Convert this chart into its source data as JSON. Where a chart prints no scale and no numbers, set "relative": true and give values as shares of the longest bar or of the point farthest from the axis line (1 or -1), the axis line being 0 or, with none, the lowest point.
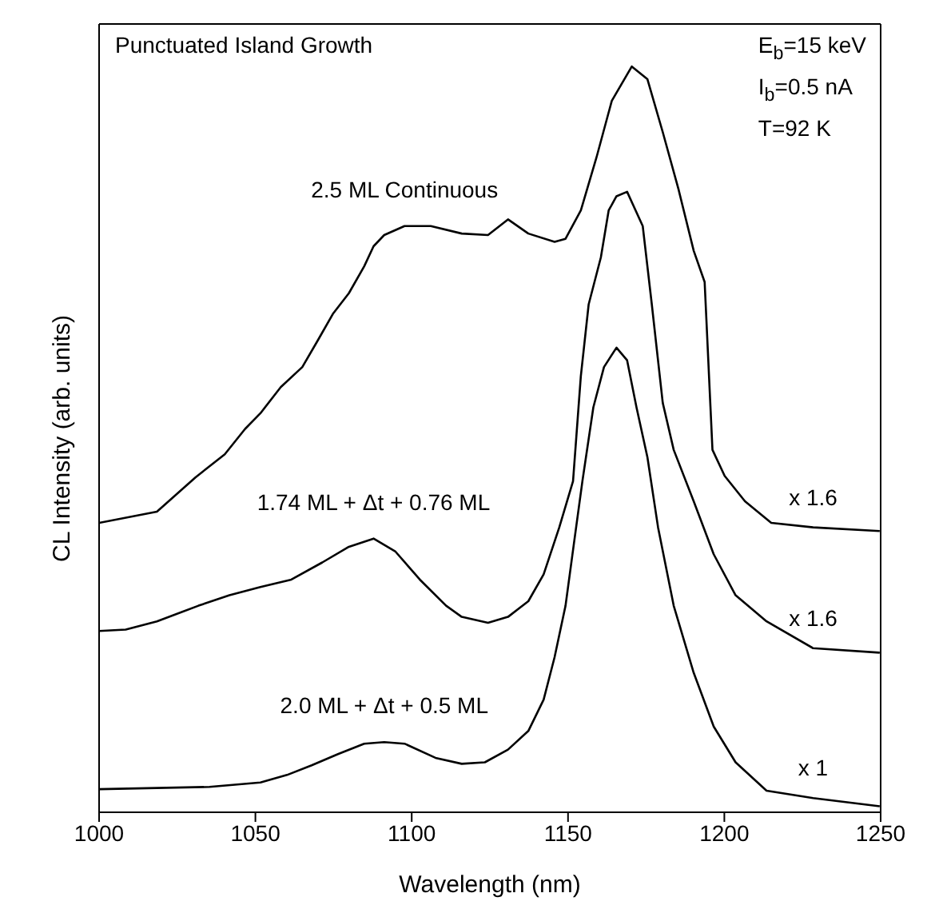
{
  "chart_data": {
    "type": "line",
    "title": "Punctuated Island Growth",
    "xlabel": "Wavelength (nm)",
    "ylabel": "CL Intensity (arb. units)",
    "relative": true,
    "marker": "none",
    "xlim": [
      1000,
      1250
    ],
    "xticks": [
      1000,
      1050,
      1100,
      1150,
      1200,
      1250
    ],
    "annotations": [
      "E$_{b}$=15 keV",
      "I$_{b}$=0.5 nA",
      "T=92 K",
      "x 1.6",
      "x 1.6",
      "x 1"
    ],
    "series": [
      {
        "name": "2.5 ML Continuous",
        "color": "#000000",
        "x": [
          1000,
          1018.5,
          1030.8,
          1040.2,
          1046.7,
          1051.6,
          1058.1,
          1065,
          1070,
          1074.9,
          1079.9,
          1084.8,
          1087.8,
          1091.2,
          1097.7,
          1106.1,
          1116,
          1124.4,
          1130.8,
          1137.3,
          1145.7,
          1149.2,
          1154.1,
          1159.1,
          1164,
          1170.4,
          1175.4,
          1180.3,
          1185.3,
          1190.2,
          1193.7,
          1196.2,
          1200.1,
          1206.6,
          1215,
          1228.4,
          1249.7
        ],
        "values": [
          0.388,
          0.403,
          0.449,
          0.48,
          0.514,
          0.535,
          0.57,
          0.597,
          0.633,
          0.669,
          0.696,
          0.732,
          0.759,
          0.774,
          0.786,
          0.786,
          0.776,
          0.774,
          0.795,
          0.776,
          0.765,
          0.769,
          0.807,
          0.878,
          0.954,
          1,
          0.983,
          0.912,
          0.836,
          0.753,
          0.711,
          0.486,
          0.451,
          0.417,
          0.388,
          0.382,
          0.377
        ]
      },
      {
        "name": "1.74 ML + Δt + 0.76 ML",
        "color": "#000000",
        "x": [
          1000,
          1008.5,
          1018.5,
          1031.8,
          1041.7,
          1051.6,
          1061.5,
          1071.4,
          1079.9,
          1087.8,
          1094.7,
          1102.6,
          1111,
          1116,
          1124.4,
          1130.8,
          1137.3,
          1142.2,
          1147.2,
          1151.6,
          1154.1,
          1156.6,
          1160.5,
          1163,
          1165.5,
          1168.9,
          1173.9,
          1176.8,
          1180.3,
          1183.8,
          1190.2,
          1196.6,
          1203.6,
          1213.5,
          1228.4,
          1249.7
        ],
        "values": [
          0.243,
          0.245,
          0.256,
          0.277,
          0.291,
          0.302,
          0.312,
          0.335,
          0.356,
          0.367,
          0.35,
          0.312,
          0.277,
          0.262,
          0.254,
          0.262,
          0.283,
          0.319,
          0.382,
          0.444,
          0.585,
          0.681,
          0.744,
          0.807,
          0.826,
          0.832,
          0.786,
          0.681,
          0.549,
          0.486,
          0.417,
          0.346,
          0.291,
          0.256,
          0.22,
          0.214
        ]
      },
      {
        "name": "2.0 ML + Δt + 0.5 ML",
        "color": "#000000",
        "x": [
          1000,
          1035.3,
          1051.6,
          1060.1,
          1068,
          1076.4,
          1084.8,
          1091.2,
          1097.7,
          1107.6,
          1116,
          1123.4,
          1130.8,
          1137.3,
          1142.2,
          1145.7,
          1149.2,
          1152.1,
          1154.6,
          1158.1,
          1161.5,
          1165.5,
          1168.9,
          1171.9,
          1175.4,
          1178.8,
          1183.8,
          1190.2,
          1196.6,
          1203.6,
          1213.5,
          1228.4,
          1249.7
        ],
        "values": [
          0.031,
          0.034,
          0.04,
          0.05,
          0.063,
          0.078,
          0.092,
          0.094,
          0.092,
          0.073,
          0.065,
          0.067,
          0.084,
          0.109,
          0.151,
          0.208,
          0.277,
          0.367,
          0.444,
          0.543,
          0.597,
          0.623,
          0.606,
          0.543,
          0.476,
          0.382,
          0.277,
          0.187,
          0.115,
          0.067,
          0.029,
          0.019,
          0.008
        ]
      }
    ]
  }
}
